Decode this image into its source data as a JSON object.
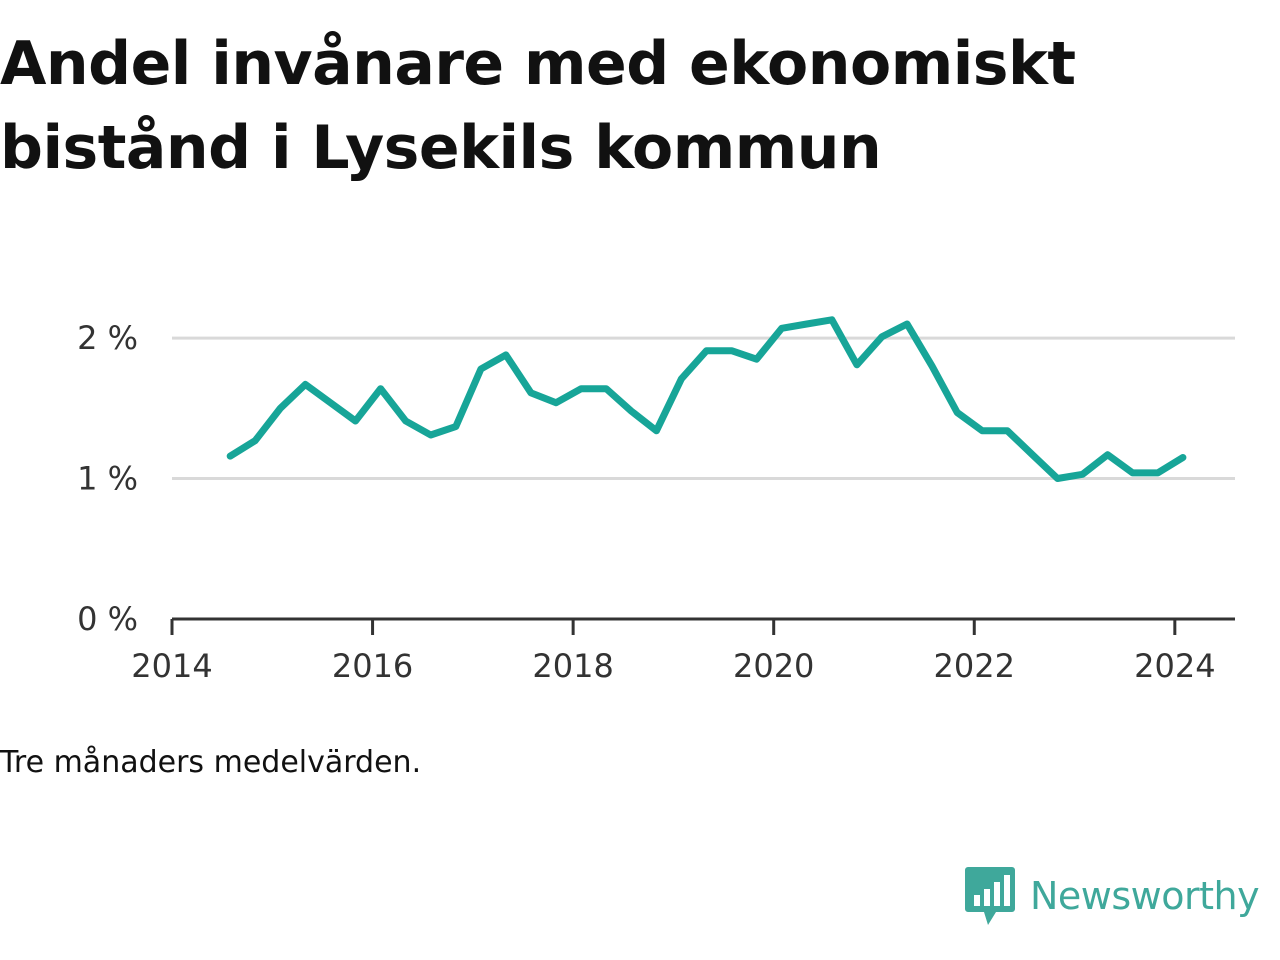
{
  "title": "Andel invånare med ekonomiskt bistånd i Lysekils kommun",
  "note": "Tre månaders medelvärden.",
  "brand": {
    "name": "Newsworthy",
    "icon": "bar-chart-speech-bubble-icon",
    "color": "#3fa89b"
  },
  "colors": {
    "line": "#17a598",
    "grid": "#d9d9d9",
    "axis": "#333333"
  },
  "chart_data": {
    "type": "line",
    "x": [
      2014.58,
      2014.83,
      2015.08,
      2015.33,
      2015.58,
      2015.83,
      2016.08,
      2016.33,
      2016.58,
      2016.83,
      2017.08,
      2017.33,
      2017.58,
      2017.83,
      2018.08,
      2018.33,
      2018.58,
      2018.83,
      2019.08,
      2019.33,
      2019.58,
      2019.83,
      2020.08,
      2020.33,
      2020.58,
      2020.83,
      2021.08,
      2021.33,
      2021.58,
      2021.83,
      2022.08,
      2022.33,
      2022.58,
      2022.83,
      2023.08,
      2023.33,
      2023.58,
      2023.83,
      2024.08
    ],
    "values": [
      1.16,
      1.27,
      1.5,
      1.67,
      1.54,
      1.41,
      1.64,
      1.41,
      1.31,
      1.37,
      1.78,
      1.88,
      1.61,
      1.54,
      1.64,
      1.64,
      1.48,
      1.34,
      1.71,
      1.91,
      1.91,
      1.85,
      2.07,
      2.1,
      2.13,
      1.81,
      2.01,
      2.1,
      1.8,
      1.47,
      1.34,
      1.34,
      1.17,
      1.0,
      1.03,
      1.17,
      1.04,
      1.04,
      1.15
    ],
    "xlim": [
      2014,
      2024.6
    ],
    "ylim": [
      0,
      2.2
    ],
    "x_ticks": [
      2014,
      2016,
      2018,
      2020,
      2022,
      2024
    ],
    "x_tick_labels": [
      "2014",
      "2016",
      "2018",
      "2020",
      "2022",
      "2024"
    ],
    "y_ticks": [
      0,
      1,
      2
    ],
    "y_tick_labels": [
      "0 %",
      "1 %",
      "2 %"
    ],
    "grid": true,
    "title": "Andel invånare med ekonomiskt bistånd i Lysekils kommun",
    "xlabel": "",
    "ylabel": ""
  }
}
